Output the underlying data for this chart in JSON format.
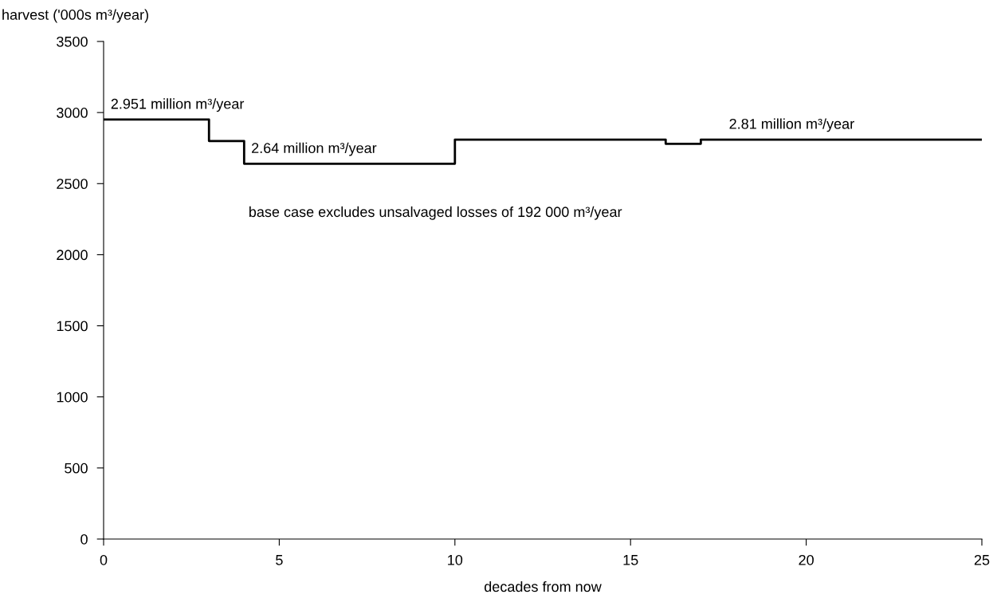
{
  "chart_data": {
    "type": "step",
    "ylabel": "harvest ('000s m³/year)",
    "xlabel": "decades from now",
    "x": [
      0,
      3,
      4,
      10,
      16,
      17,
      25
    ],
    "series": [
      {
        "color": "#000000",
        "values": [
          2951,
          2800,
          2640,
          2810,
          2780,
          2810,
          2810
        ]
      }
    ],
    "xlim": [
      0,
      25
    ],
    "xticks": [
      0,
      5,
      10,
      15,
      20,
      25
    ],
    "ylim": [
      0,
      3500
    ],
    "yticks": [
      0,
      500,
      1000,
      1500,
      2000,
      2500,
      3000,
      3500
    ],
    "grid": false,
    "marker": "none",
    "line_style": "solid",
    "annotations": [
      {
        "text": "2.951 million m³/year",
        "x": 0.2,
        "y": 2951
      },
      {
        "text": "2.64 million m³/year",
        "x": 4.2,
        "y": 2640
      },
      {
        "text": "2.81 million m³/year",
        "x": 17.8,
        "y": 2810
      },
      "base case excludes unsalvaged losses of 192 000 m³/year"
    ]
  }
}
